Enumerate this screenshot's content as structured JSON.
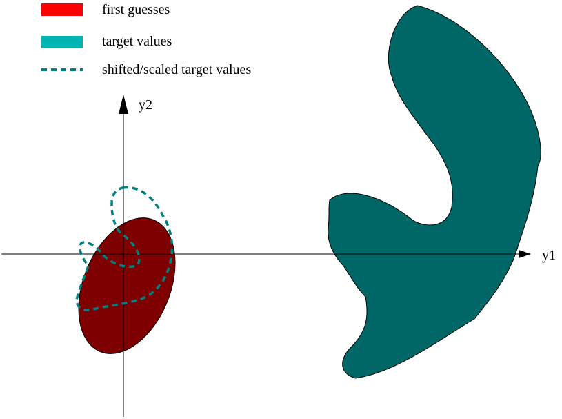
{
  "legend": {
    "items": [
      {
        "label": "first guesses",
        "color": "#ff0000",
        "style": "solid"
      },
      {
        "label": "target values",
        "color": "#00b4b4",
        "style": "solid"
      },
      {
        "label": "shifted/scaled target values",
        "color": "#008080",
        "style": "dashed"
      }
    ]
  },
  "axes": {
    "x_label": "y1",
    "y_label": "y2"
  },
  "colors": {
    "first_guess_fill": "#7f0000",
    "target_fill": "#006666",
    "dashed_outline": "#008080",
    "axis": "#000000"
  }
}
